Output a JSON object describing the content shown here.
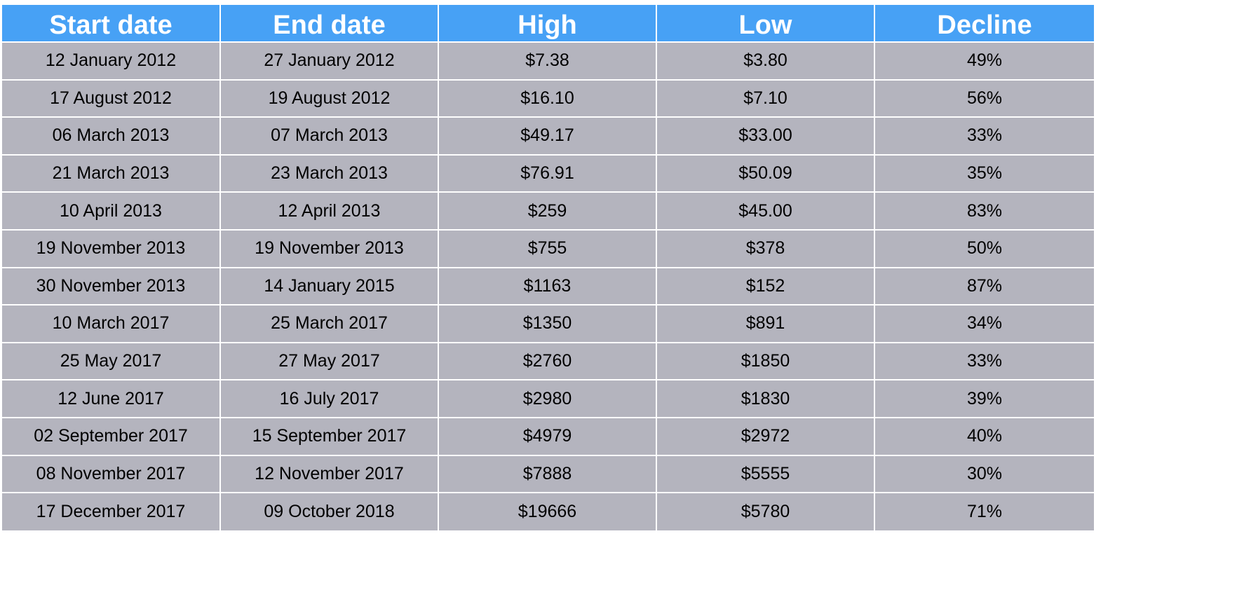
{
  "chart_data": {
    "type": "table",
    "columns": [
      "Start date",
      "End date",
      "High",
      "Low",
      "Decline"
    ],
    "rows": [
      [
        "12 January 2012",
        "27 January 2012",
        "$7.38",
        "$3.80",
        "49%"
      ],
      [
        "17 August 2012",
        "19 August 2012",
        "$16.10",
        "$7.10",
        "56%"
      ],
      [
        "06 March 2013",
        "07 March 2013",
        "$49.17",
        "$33.00",
        "33%"
      ],
      [
        "21 March 2013",
        "23 March 2013",
        "$76.91",
        "$50.09",
        "35%"
      ],
      [
        "10 April 2013",
        "12 April 2013",
        "$259",
        "$45.00",
        "83%"
      ],
      [
        "19 November 2013",
        "19 November 2013",
        "$755",
        "$378",
        "50%"
      ],
      [
        "30 November 2013",
        "14 January 2015",
        "$1163",
        "$152",
        "87%"
      ],
      [
        "10 March 2017",
        "25 March 2017",
        "$1350",
        "$891",
        "34%"
      ],
      [
        "25 May 2017",
        "27 May 2017",
        "$2760",
        "$1850",
        "33%"
      ],
      [
        "12 June 2017",
        "16 July 2017",
        "$2980",
        "$1830",
        "39%"
      ],
      [
        "02 September 2017",
        "15 September 2017",
        "$4979",
        "$2972",
        "40%"
      ],
      [
        "08 November 2017",
        "12 November 2017",
        "$7888",
        "$5555",
        "30%"
      ],
      [
        "17 December 2017",
        "09 October 2018",
        "$19666",
        "$5780",
        "71%"
      ]
    ],
    "header_color": "#47a1f5",
    "cell_color": "#b4b4be"
  }
}
